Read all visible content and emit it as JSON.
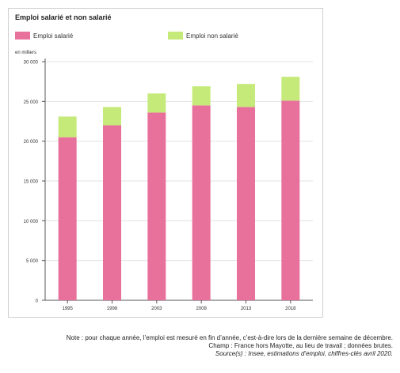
{
  "chart_data": {
    "type": "bar",
    "stacked": true,
    "title": "Emploi salarié et non salarié",
    "ylabel": "en milliers",
    "xlabel": "",
    "categories": [
      "1995",
      "1998",
      "2003",
      "2008",
      "2013",
      "2018"
    ],
    "y_tick_labels": [
      "0",
      "5 000",
      "10 000",
      "15 000",
      "20 000",
      "25 000",
      "30 000"
    ],
    "ylim": [
      0,
      30000
    ],
    "grid": true,
    "legend_position": "top-left",
    "series": [
      {
        "name": "Emploi salarié",
        "color": "#e8719b",
        "values": [
          20500,
          22000,
          23600,
          24500,
          24300,
          25100
        ]
      },
      {
        "name": "Emploi non salarié",
        "color": "#c6ea7a",
        "values": [
          2600,
          2300,
          2400,
          2400,
          2900,
          3000
        ]
      }
    ]
  },
  "notes": {
    "note": "Note : pour chaque année, l’emploi est mesuré en fin d’année, c’est-à-dire lors de la dernière semaine de décembre.",
    "champ": "Champ : France hors Mayotte, au lieu de travail ; données brutes.",
    "source": "Source(s) : Insee, estimations d’emploi, chiffres-clés avril 2020."
  }
}
